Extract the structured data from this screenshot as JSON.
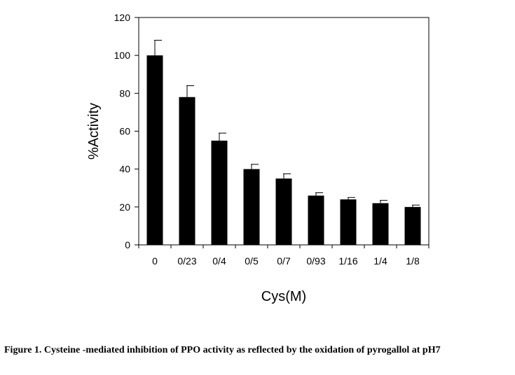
{
  "chart_data": {
    "type": "bar",
    "categories": [
      "0",
      "0/23",
      "0/4",
      "0/5",
      "0/7",
      "0/93",
      "1/16",
      "1/4",
      "1/8"
    ],
    "values": [
      100,
      78,
      55,
      40,
      35,
      26,
      24,
      22,
      20
    ],
    "error_bars": [
      8,
      6,
      4,
      2.5,
      2.5,
      1.5,
      1,
      1.5,
      1
    ],
    "xlabel": "Cys(M)",
    "ylabel": "%Activity",
    "ylim": [
      0,
      120
    ],
    "yticks": [
      0,
      20,
      40,
      60,
      80,
      100,
      120
    ],
    "grid": false,
    "bar_color": "#000000"
  },
  "caption": "Figure 1. Cysteine -mediated inhibition of PPO activity as reflected by the oxidation of pyrogallol at pH7"
}
